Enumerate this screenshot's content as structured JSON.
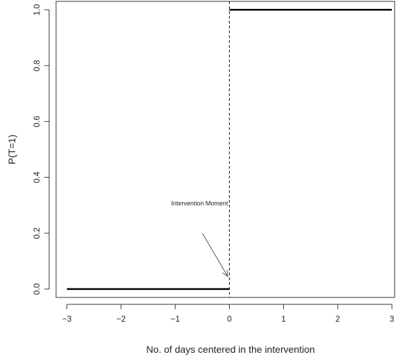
{
  "chart_data": {
    "type": "line",
    "title": "",
    "xlabel": "No. of days centered in the intervention",
    "ylabel": "P(T=1)",
    "xlim": [
      -3.2,
      3.05
    ],
    "ylim": [
      -0.03,
      1.03
    ],
    "x_ticks": [
      -3,
      -2,
      -1,
      0,
      1,
      2,
      3
    ],
    "x_tick_labels": [
      "−3",
      "−2",
      "−1",
      "0",
      "1",
      "2",
      "3"
    ],
    "y_ticks": [
      0.0,
      0.2,
      0.4,
      0.6,
      0.8,
      1.0
    ],
    "y_tick_labels": [
      "0.0",
      "0.2",
      "0.4",
      "0.6",
      "0.8",
      "1.0"
    ],
    "grid": false,
    "series": [
      {
        "segments": [
          {
            "x": [
              -3,
              0
            ],
            "y": [
              0,
              0
            ]
          },
          {
            "x": [
              0,
              3
            ],
            "y": [
              1,
              1
            ]
          }
        ]
      }
    ],
    "vline": {
      "x": 0,
      "style": "dashed"
    },
    "annotations": [
      {
        "text": "Intervention Moment",
        "x": -0.55,
        "y": 0.3,
        "arrow_from": [
          -0.5,
          0.2
        ],
        "arrow_to": [
          -0.03,
          0.045
        ]
      }
    ]
  }
}
